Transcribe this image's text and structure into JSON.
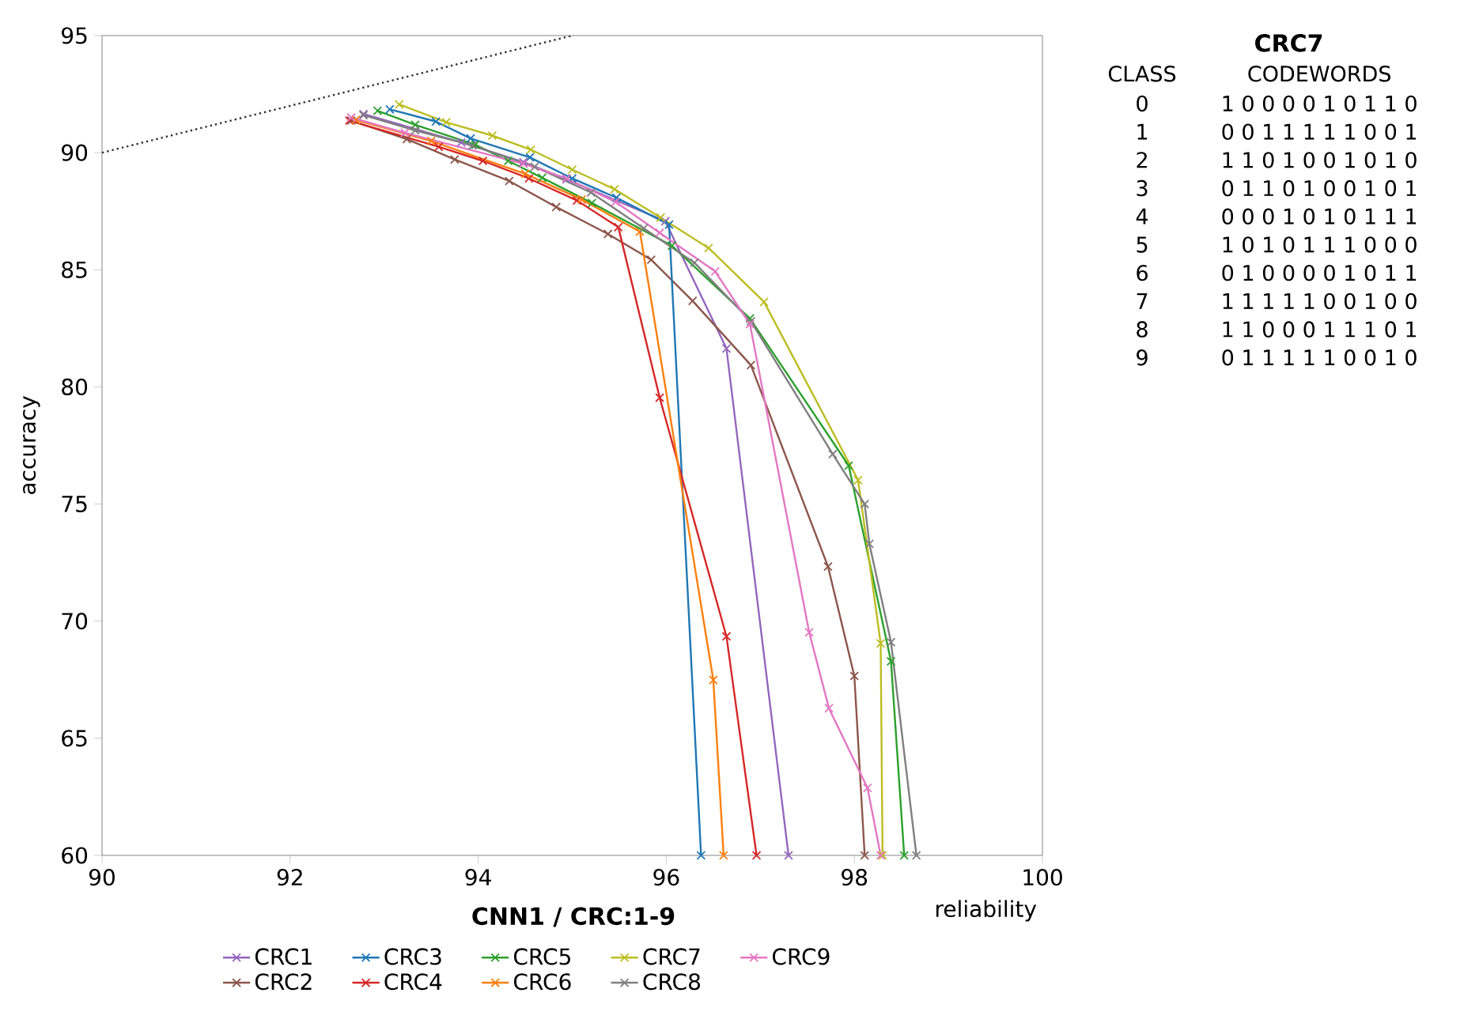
{
  "chart_data": {
    "type": "line",
    "title": "CNN1 / CRC:1-9",
    "xlabel": "reliability",
    "ylabel": "accuracy",
    "xlim": [
      90,
      100
    ],
    "ylim": [
      60,
      95
    ],
    "xticks": [
      90,
      92,
      94,
      96,
      98,
      100
    ],
    "yticks": [
      60,
      65,
      70,
      75,
      80,
      85,
      90,
      95
    ],
    "legend": "bottom",
    "marker": "cross",
    "line_style": "solid",
    "series": [
      {
        "name": "CRC1",
        "color": "#9467bd",
        "x": [
          92.78,
          93.82,
          94.48,
          94.94,
          95.99,
          96.64,
          97.3
        ],
        "values": [
          91.65,
          90.44,
          89.6,
          88.86,
          87.07,
          81.64,
          60
        ]
      },
      {
        "name": "CRC2",
        "color": "#8c564b",
        "x": [
          92.65,
          93.24,
          93.75,
          94.33,
          94.83,
          95.38,
          95.84,
          96.28,
          96.9,
          97.72,
          98.0,
          98.11
        ],
        "values": [
          91.37,
          90.58,
          89.71,
          88.79,
          87.68,
          86.53,
          85.43,
          83.67,
          80.93,
          72.33,
          67.66,
          60
        ]
      },
      {
        "name": "CRC3",
        "color": "#1f77b4",
        "x": [
          93.06,
          93.55,
          93.92,
          94.55,
          95.0,
          95.47,
          96.03,
          96.37
        ],
        "values": [
          91.85,
          91.33,
          90.61,
          89.8,
          88.9,
          88.08,
          86.93,
          60
        ]
      },
      {
        "name": "CRC4",
        "color": "#d62728",
        "x": [
          92.63,
          93.58,
          94.05,
          94.54,
          95.05,
          95.49,
          95.93,
          96.64,
          96.96
        ],
        "values": [
          91.37,
          90.25,
          89.65,
          88.9,
          87.96,
          86.82,
          79.54,
          69.35,
          60
        ]
      },
      {
        "name": "CRC5",
        "color": "#2ca02c",
        "x": [
          92.93,
          93.33,
          93.97,
          94.32,
          94.68,
          95.21,
          96.06,
          96.89,
          97.94,
          98.39,
          98.53
        ],
        "values": [
          91.79,
          91.19,
          90.34,
          89.65,
          88.93,
          87.85,
          86.03,
          82.92,
          76.64,
          68.28,
          60
        ]
      },
      {
        "name": "CRC6",
        "color": "#ff7f0e",
        "x": [
          92.7,
          93.5,
          94.5,
          95.1,
          95.72,
          96.5,
          96.61
        ],
        "values": [
          91.4,
          90.5,
          89.1,
          88.0,
          86.63,
          67.49,
          60
        ]
      },
      {
        "name": "CRC7",
        "color": "#bcbd22",
        "x": [
          93.16,
          93.66,
          94.15,
          94.56,
          95.0,
          95.45,
          95.94,
          96.45,
          97.04,
          98.04,
          98.28,
          98.3
        ],
        "values": [
          92.06,
          91.3,
          90.73,
          90.13,
          89.28,
          88.44,
          87.23,
          85.93,
          83.63,
          76.02,
          69.05,
          60
        ]
      },
      {
        "name": "CRC8",
        "color": "#7f7f7f",
        "x": [
          92.78,
          93.33,
          93.94,
          94.6,
          95.2,
          95.76,
          96.3,
          96.9,
          97.77,
          98.11,
          98.16,
          98.39,
          98.66
        ],
        "values": [
          91.6,
          90.95,
          90.31,
          89.4,
          88.3,
          86.77,
          85.3,
          82.8,
          77.13,
          75.0,
          73.3,
          69.1,
          60
        ]
      },
      {
        "name": "CRC9",
        "color": "#e377c2",
        "x": [
          92.65,
          93.22,
          94.48,
          94.94,
          95.46,
          95.93,
          96.52,
          96.89,
          97.52,
          97.73,
          98.14,
          98.28
        ],
        "values": [
          91.5,
          90.85,
          89.53,
          88.9,
          87.9,
          86.58,
          84.93,
          82.68,
          69.52,
          66.28,
          62.88,
          60
        ]
      },
      {
        "color": "#333333",
        "marker": "none",
        "line_style": "dotted",
        "x": [
          90,
          95
        ],
        "values": [
          90,
          95
        ]
      }
    ],
    "annotations": [
      "CRC7",
      "CLASS",
      "CODEWORDS",
      "0",
      "1 0 0 0 0 1 0 1 1 0",
      "1",
      "0 0 1 1 1 1 1 0 0 1",
      "2",
      "1 1 0 1 0 0 1 0 1 0",
      "3",
      "0 1 1 0 1 0 0 1 0 1",
      "4",
      "0 0 0 1 0 1 0 1 1 1",
      "5",
      "1 0 1 0 1 1 1 0 0 0",
      "6",
      "0 1 0 0 0 0 1 0 1 1",
      "7",
      "1 1 1 1 1 0 0 1 0 0",
      "8",
      "1 1 0 0 0 1 1 1 0 1",
      "9",
      "0 1 1 1 1 1 0 0 1 0"
    ]
  }
}
